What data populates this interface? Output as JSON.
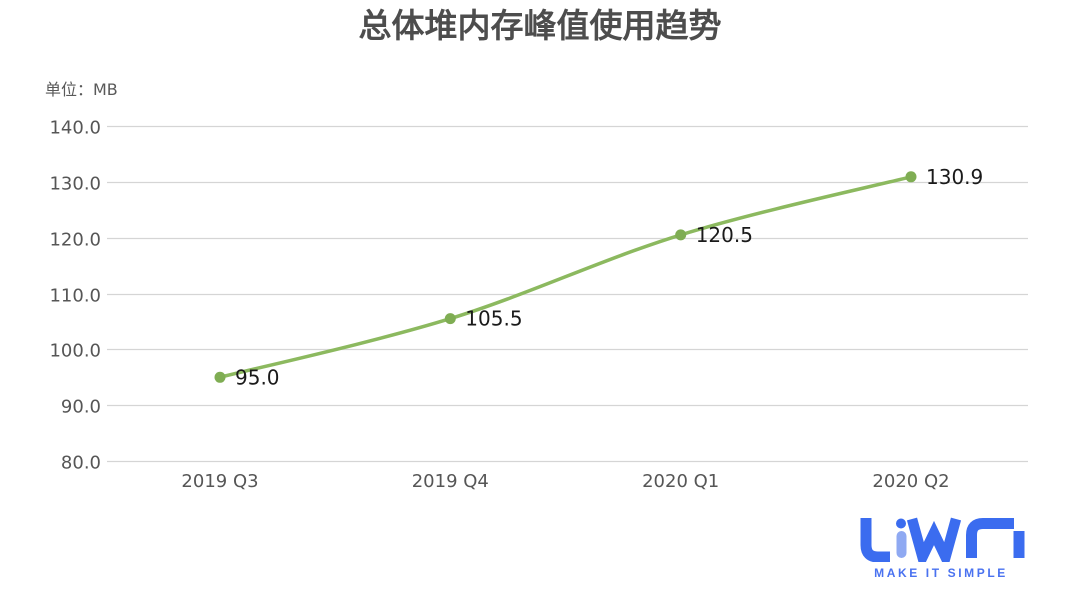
{
  "chart_data": {
    "type": "line",
    "title": "总体堆内存峰值使用趋势",
    "unit_label": "单位：MB",
    "unit": "MB",
    "categories": [
      "2019 Q3",
      "2019 Q4",
      "2020 Q1",
      "2020 Q2"
    ],
    "values": [
      95.0,
      105.5,
      120.5,
      130.9
    ],
    "point_labels": [
      "95.0",
      "105.5",
      "120.5",
      "130.9"
    ],
    "y_ticks": [
      "140.0",
      "130.0",
      "120.0",
      "110.0",
      "100.0",
      "90.0",
      "80.0"
    ],
    "ylim": [
      80,
      140
    ],
    "y_step": 10,
    "grid": "horizontal",
    "smooth": true,
    "legend": "none",
    "line_color": "#8CB95F",
    "marker_color": "#7FAD53"
  },
  "colors": {
    "background": "#ffffff",
    "grid_line": "#d5d5d5",
    "title_text": "#4d4d4d",
    "axis_text": "#565656",
    "data_label_text": "#1a1a1a"
  },
  "footer_logo": {
    "brand": "LiWA",
    "tagline": "MAKE IT SIMPLE",
    "blue": "#3B6CEF",
    "light_blue": "#8FA9F2",
    "tagline_color": "#4A72F0"
  }
}
